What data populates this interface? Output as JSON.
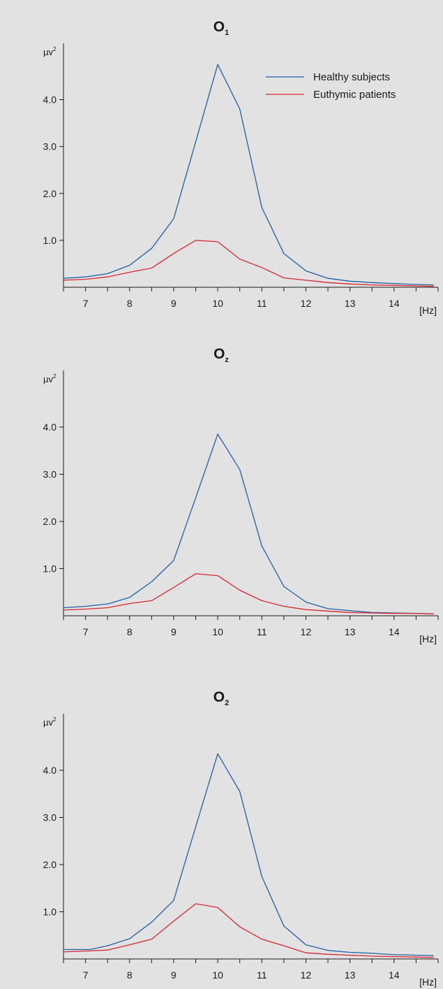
{
  "chart_data": [
    {
      "type": "line",
      "title": "O",
      "title_subscript": "1",
      "ylabel": "µv",
      "ylabel_superscript": "2",
      "xlabel": "[Hz]",
      "xlim": [
        6.5,
        15
      ],
      "ylim": [
        0,
        5.2
      ],
      "x_ticks": [
        7,
        8,
        9,
        10,
        11,
        12,
        13,
        14
      ],
      "x_tick_labels": [
        "7",
        "8",
        "9",
        "10",
        "11",
        "12",
        "13",
        "14"
      ],
      "y_ticks": [
        1,
        2,
        3,
        4
      ],
      "y_tick_labels": [
        "1.0",
        "2.0",
        "3.0",
        "4.0"
      ],
      "grid": false,
      "legend_position": "top-right",
      "x": [
        6.5,
        7,
        7.5,
        8,
        8.5,
        9,
        9.5,
        10,
        10.5,
        11,
        11.5,
        12,
        12.5,
        13,
        13.5,
        14,
        14.5,
        14.9
      ],
      "series": [
        {
          "name": "Healthy subjects",
          "color": "#1f5fa8",
          "values": [
            0.19,
            0.22,
            0.29,
            0.47,
            0.83,
            1.46,
            3.1,
            4.75,
            3.8,
            1.7,
            0.72,
            0.35,
            0.19,
            0.13,
            0.1,
            0.08,
            0.06,
            0.05
          ]
        },
        {
          "name": "Euthymic patients",
          "color": "#d8262f",
          "values": [
            0.15,
            0.17,
            0.22,
            0.32,
            0.41,
            0.72,
            1.0,
            0.97,
            0.6,
            0.42,
            0.2,
            0.15,
            0.1,
            0.07,
            0.05,
            0.04,
            0.03,
            0.02
          ]
        }
      ]
    },
    {
      "type": "line",
      "title": "O",
      "title_subscript": "z",
      "ylabel": "µv",
      "ylabel_superscript": "2",
      "xlabel": "[Hz]",
      "xlim": [
        6.5,
        15
      ],
      "ylim": [
        0,
        5.2
      ],
      "x_ticks": [
        7,
        8,
        9,
        10,
        11,
        12,
        13,
        14
      ],
      "x_tick_labels": [
        "7",
        "8",
        "9",
        "10",
        "11",
        "12",
        "13",
        "14"
      ],
      "y_ticks": [
        1,
        2,
        3,
        4
      ],
      "y_tick_labels": [
        "1.0",
        "2.0",
        "3.0",
        "4.0"
      ],
      "grid": false,
      "legend_position": "none",
      "x": [
        6.5,
        7,
        7.5,
        8,
        8.5,
        9,
        9.5,
        10,
        10.5,
        11,
        11.5,
        12,
        12.5,
        13,
        13.5,
        14,
        14.5,
        14.9
      ],
      "series": [
        {
          "name": "Healthy subjects",
          "color": "#1f5fa8",
          "values": [
            0.17,
            0.2,
            0.25,
            0.39,
            0.72,
            1.17,
            2.5,
            3.85,
            3.1,
            1.48,
            0.62,
            0.29,
            0.15,
            0.11,
            0.07,
            0.06,
            0.05,
            0.04
          ]
        },
        {
          "name": "Euthymic patients",
          "color": "#d8262f",
          "values": [
            0.12,
            0.14,
            0.17,
            0.26,
            0.32,
            0.6,
            0.89,
            0.85,
            0.54,
            0.32,
            0.2,
            0.13,
            0.1,
            0.07,
            0.06,
            0.05,
            0.05,
            0.04
          ]
        }
      ]
    },
    {
      "type": "line",
      "title": "O",
      "title_subscript": "2",
      "ylabel": "µv",
      "ylabel_superscript": "2",
      "xlabel": "[Hz]",
      "xlim": [
        6.5,
        15
      ],
      "ylim": [
        0,
        5.2
      ],
      "x_ticks": [
        7,
        8,
        9,
        10,
        11,
        12,
        13,
        14
      ],
      "x_tick_labels": [
        "7",
        "8",
        "9",
        "10",
        "11",
        "12",
        "13",
        "14"
      ],
      "y_ticks": [
        1,
        2,
        3,
        4
      ],
      "y_tick_labels": [
        "1.0",
        "2.0",
        "3.0",
        "4.0"
      ],
      "grid": false,
      "legend_position": "none",
      "x": [
        6.5,
        7.1,
        7.5,
        8,
        8.5,
        9,
        9.5,
        10,
        10.5,
        11,
        11.5,
        12,
        12.5,
        13,
        13.5,
        14,
        14.5,
        14.9
      ],
      "series": [
        {
          "name": "Healthy subjects",
          "color": "#1f5fa8",
          "values": [
            0.2,
            0.2,
            0.28,
            0.43,
            0.78,
            1.24,
            2.8,
            4.35,
            3.55,
            1.75,
            0.7,
            0.3,
            0.18,
            0.14,
            0.12,
            0.09,
            0.08,
            0.07
          ]
        },
        {
          "name": "Euthymic patients",
          "color": "#d8262f",
          "values": [
            0.15,
            0.17,
            0.19,
            0.3,
            0.42,
            0.8,
            1.17,
            1.09,
            0.68,
            0.42,
            0.28,
            0.13,
            0.1,
            0.08,
            0.06,
            0.05,
            0.04,
            0.03
          ]
        }
      ]
    }
  ]
}
